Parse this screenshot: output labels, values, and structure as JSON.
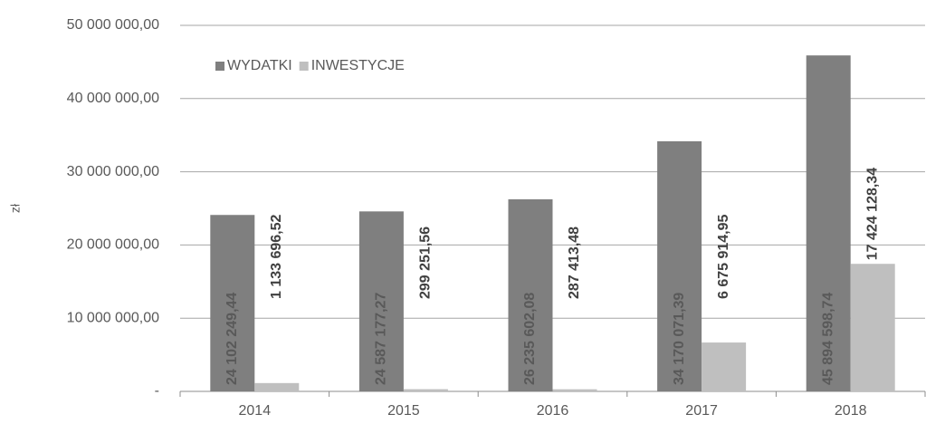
{
  "chart_data": {
    "type": "bar",
    "y_label": "zł",
    "categories": [
      "2014",
      "2015",
      "2016",
      "2017",
      "2018"
    ],
    "series": [
      {
        "name": "WYDATKI",
        "color": "#7f7f7f",
        "label_color": "#595959",
        "values": [
          24102249.44,
          24587177.27,
          26235602.08,
          34170071.39,
          45894598.74
        ],
        "value_labels": [
          "24 102 249,44",
          "24 587 177,27",
          "26 235 602,08",
          "34 170 071,39",
          "45 894 598,74"
        ]
      },
      {
        "name": "INWESTYCJE",
        "color": "#bfbfbf",
        "label_color": "#404040",
        "values": [
          1133696.52,
          299251.56,
          287413.48,
          6675914.95,
          17424128.34
        ],
        "value_labels": [
          "1 133 696,52",
          "299 251,56",
          "287 413,48",
          "6 675 914,95",
          "17 424 128,34"
        ]
      }
    ],
    "ylim": [
      0,
      50000000
    ],
    "yticks": [
      {
        "value": 0,
        "label": "-"
      },
      {
        "value": 10000000,
        "label": "10 000 000,00"
      },
      {
        "value": 20000000,
        "label": "20 000 000,00"
      },
      {
        "value": 30000000,
        "label": "30 000 000,00"
      },
      {
        "value": 40000000,
        "label": "40 000 000,00"
      },
      {
        "value": 50000000,
        "label": "50 000 000,00"
      }
    ],
    "grid": true,
    "legend": "top-left"
  }
}
